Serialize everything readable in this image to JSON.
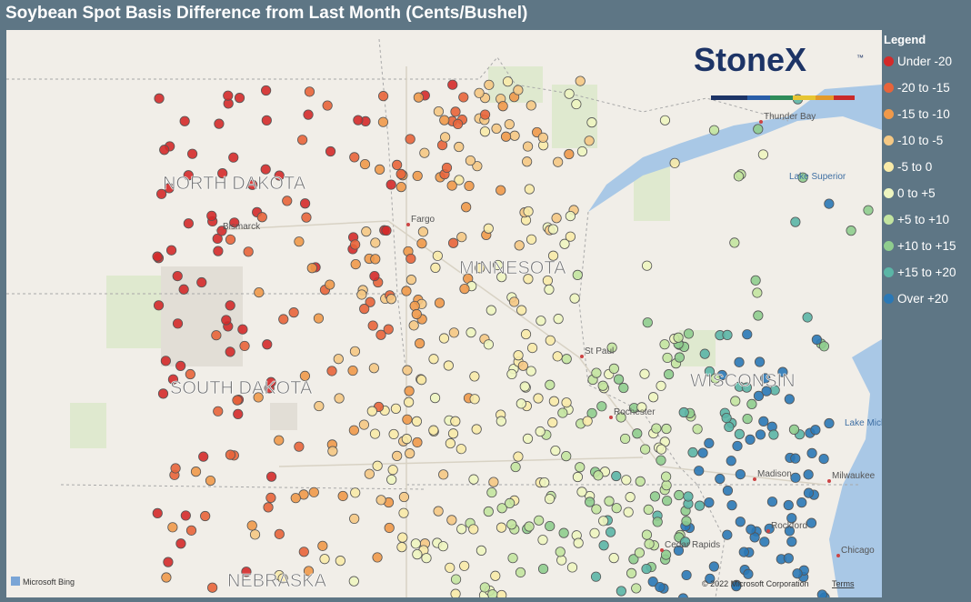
{
  "header": {
    "title": "Soybean Spot Basis Difference from Last Month (Cents/Bushel)"
  },
  "logo": {
    "name": "StoneX",
    "mark": "™"
  },
  "legend": {
    "title": "Legend",
    "items": [
      {
        "label": "Under -20",
        "color": "#d42a2a"
      },
      {
        "label": "-20 to -15",
        "color": "#e8643a"
      },
      {
        "label": "-15 to -10",
        "color": "#f0994a"
      },
      {
        "label": "-10 to -5",
        "color": "#f5c884"
      },
      {
        "label": "-5 to 0",
        "color": "#f8eaa8"
      },
      {
        "label": "0 to +5",
        "color": "#eef5c0"
      },
      {
        "label": "+5 to +10",
        "color": "#c3e4a0"
      },
      {
        "label": "+10 to +15",
        "color": "#8fcd8e"
      },
      {
        "label": "+15 to +20",
        "color": "#5bb5a6"
      },
      {
        "label": "Over +20",
        "color": "#2a78b6"
      }
    ]
  },
  "map": {
    "labels": {
      "states": [
        "NORTH DAKOTA",
        "SOUTH DAKOTA",
        "MINNESOTA",
        "WISCONSIN",
        "NEBRASKA"
      ],
      "cities": [
        "Bismarck",
        "Fargo",
        "St Paul",
        "Thunder Bay",
        "Rochester",
        "Madison",
        "Milwaukee",
        "Rockford",
        "Chicago",
        "Cedar Rapids"
      ],
      "water": [
        "Lake Superior",
        "Lake Michigan"
      ]
    },
    "attribution": {
      "provider": "Microsoft Bing",
      "copyright": "© 2022 Microsoft Corporation",
      "terms": "Terms"
    }
  }
}
